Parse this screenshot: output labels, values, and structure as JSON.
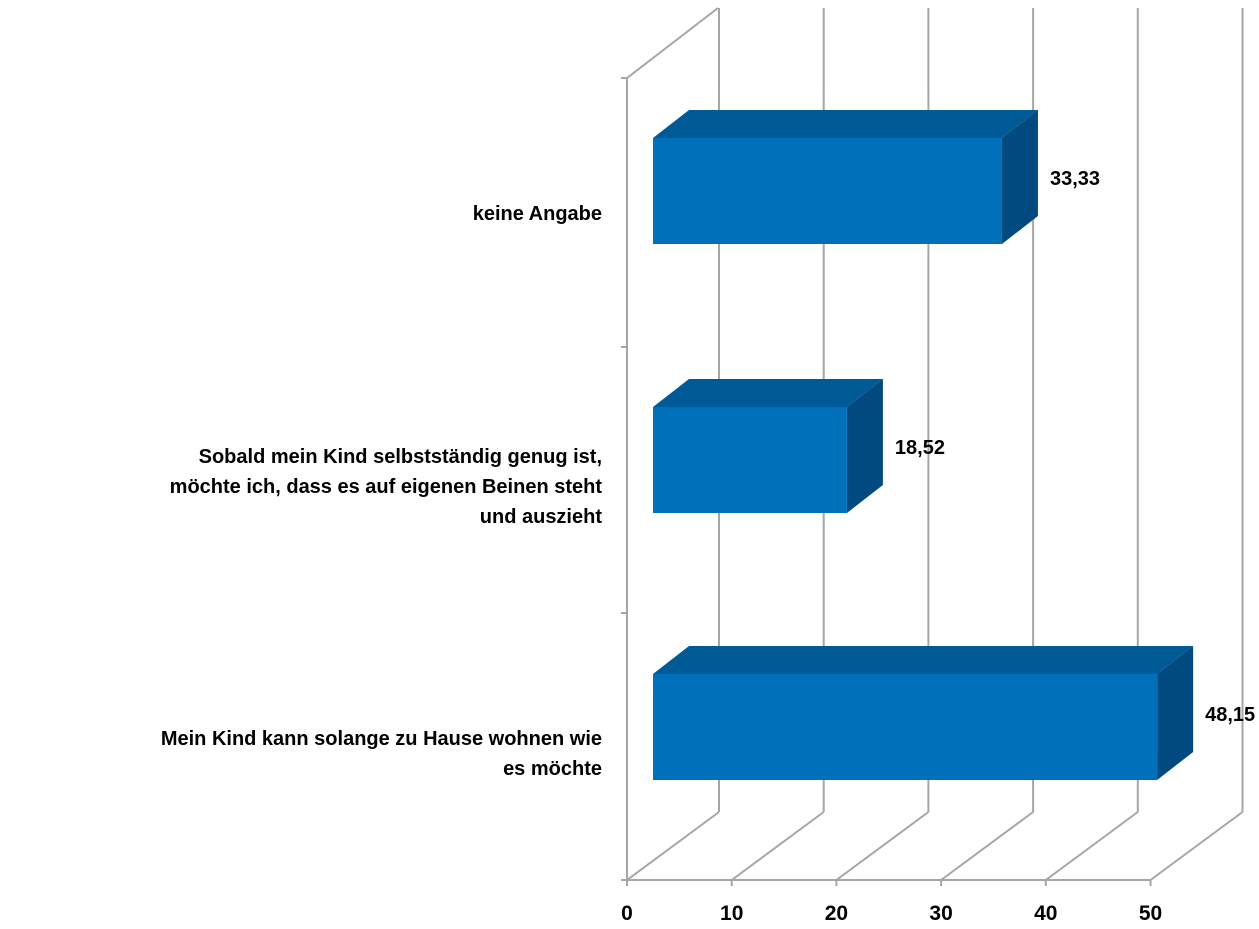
{
  "chart_data": {
    "type": "bar",
    "orientation": "horizontal",
    "style": "3d",
    "categories": [
      "keine Angabe",
      "Sobald mein Kind selbstständig genug ist, möchte ich, dass es auf eigenen Beinen steht und auszieht",
      "Mein Kind kann solange zu Hause wohnen wie es möchte"
    ],
    "category_label_lines": [
      [
        "keine Angabe"
      ],
      [
        "Sobald mein Kind selbstständig genug ist,",
        "möchte ich, dass es auf eigenen Beinen steht",
        "und auszieht"
      ],
      [
        "Mein Kind kann solange zu Hause wohnen wie",
        "es möchte"
      ]
    ],
    "values": [
      33.33,
      18.52,
      48.15
    ],
    "data_labels": [
      "33,33",
      "18,52",
      "48,15"
    ],
    "xlim": [
      0,
      50
    ],
    "xticks": [
      0,
      10,
      20,
      30,
      40,
      50
    ],
    "xtick_labels": [
      "0",
      "10",
      "20",
      "30",
      "40",
      "50"
    ],
    "grid": true,
    "colors": {
      "bar_front": "#0070BB",
      "bar_top": "#005A95",
      "bar_side": "#004A80",
      "grid": "#A6A6A6"
    }
  }
}
